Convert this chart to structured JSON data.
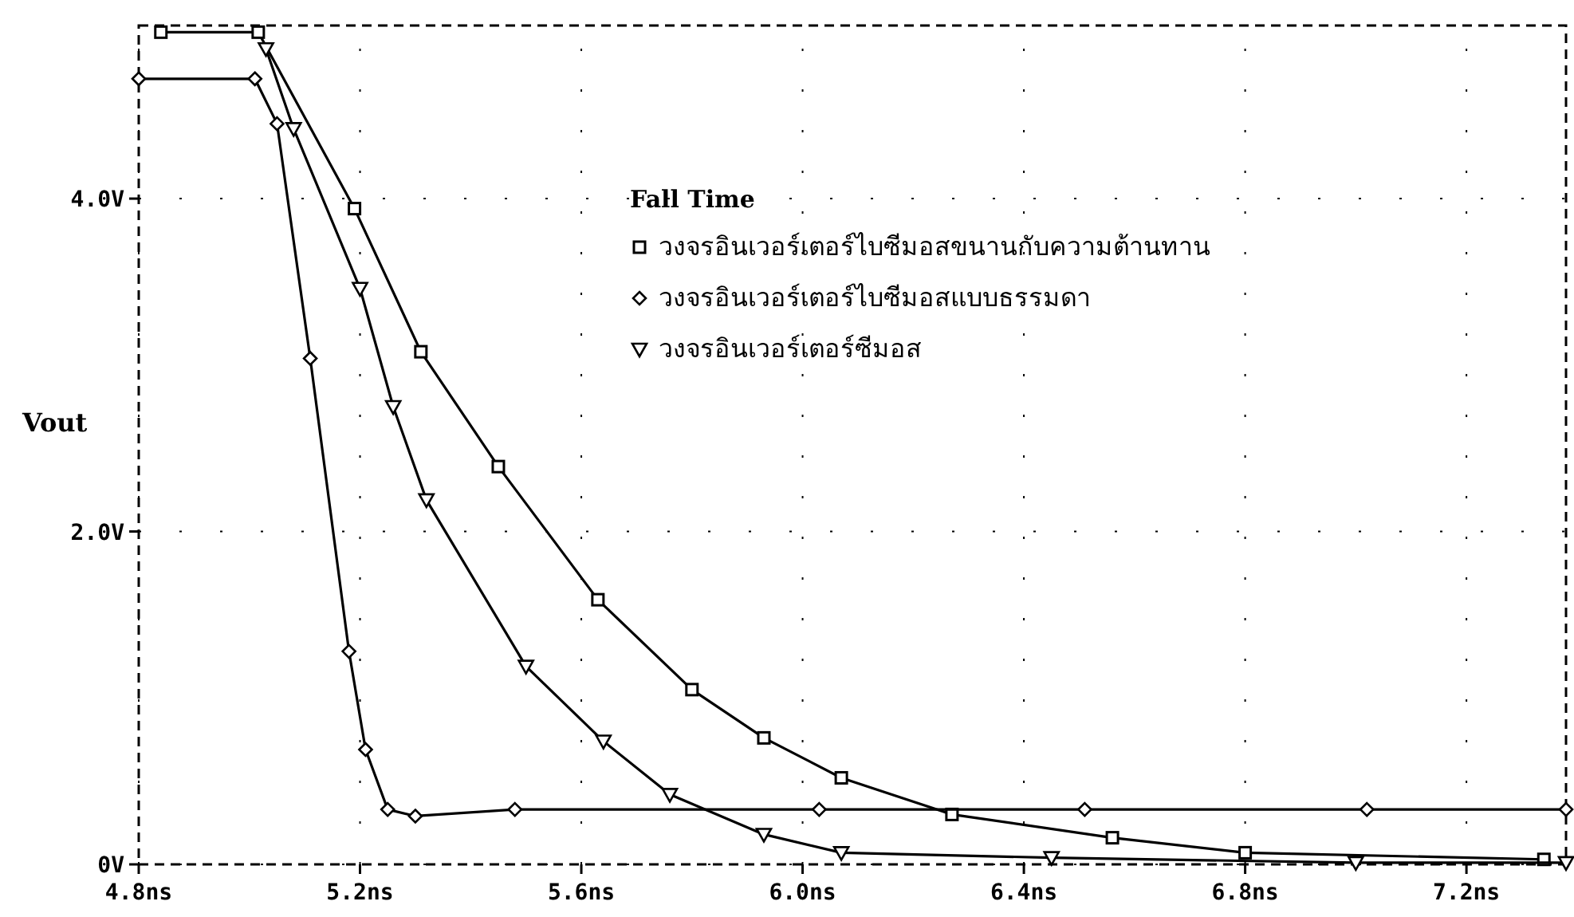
{
  "chart_data": {
    "type": "line",
    "ylabel": "Vout",
    "legend_title": "Fall Time",
    "legend": "top right",
    "grid": true,
    "line_style": "solid",
    "xlim": [
      4.8,
      7.38
    ],
    "ylim": [
      0,
      5.04
    ],
    "xticks": [
      {
        "value": 4.8,
        "label": "4.8ns"
      },
      {
        "value": 5.2,
        "label": "5.2ns"
      },
      {
        "value": 5.6,
        "label": "5.6ns"
      },
      {
        "value": 6.0,
        "label": "6.0ns"
      },
      {
        "value": 6.4,
        "label": "6.4ns"
      },
      {
        "value": 6.8,
        "label": "6.8ns"
      },
      {
        "value": 7.2,
        "label": "7.2ns"
      }
    ],
    "yticks": [
      {
        "value": 0,
        "label": "0V"
      },
      {
        "value": 2,
        "label": "2.0V"
      },
      {
        "value": 4,
        "label": "4.0V"
      }
    ],
    "series": [
      {
        "name": "วงจรอินเวอร์เตอร์ไบซีมอสขนานกับความต้านทาน",
        "color": "#000000",
        "marker": "square",
        "x": [
          4.84,
          5.016,
          5.19,
          5.31,
          5.45,
          5.63,
          5.8,
          5.93,
          6.07,
          6.27,
          6.56,
          6.8,
          7.34
        ],
        "values": [
          5.0,
          5.0,
          3.94,
          3.08,
          2.39,
          1.59,
          1.05,
          0.76,
          0.52,
          0.3,
          0.16,
          0.07,
          0.03
        ]
      },
      {
        "name": "วงจรอินเวอร์เตอร์ไบซีมอสแบบธรรมดา",
        "color": "#000000",
        "marker": "diamond",
        "x": [
          4.8,
          5.01,
          5.05,
          5.11,
          5.18,
          5.21,
          5.25,
          5.3,
          5.48,
          6.03,
          6.51,
          7.02,
          7.38
        ],
        "values": [
          4.72,
          4.72,
          4.45,
          3.04,
          1.28,
          0.69,
          0.33,
          0.29,
          0.33,
          0.33,
          0.33,
          0.33,
          0.33
        ]
      },
      {
        "name": "วงจรอินเวอร์เตอร์ซีมอส",
        "color": "#000000",
        "marker": "triangle",
        "x": [
          5.03,
          5.08,
          5.2,
          5.26,
          5.32,
          5.5,
          5.64,
          5.76,
          5.93,
          6.07,
          6.45,
          7.0,
          7.38
        ],
        "values": [
          4.9,
          4.42,
          3.46,
          2.75,
          2.19,
          1.19,
          0.74,
          0.42,
          0.18,
          0.07,
          0.04,
          0.01,
          0.01
        ]
      }
    ]
  }
}
